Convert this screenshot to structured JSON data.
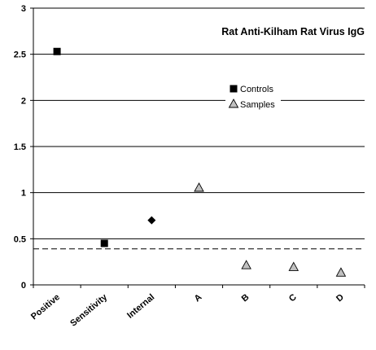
{
  "chart_data": {
    "type": "scatter",
    "title": "Rat Anti-Kilham Rat Virus IgG",
    "categories": [
      "Positive",
      "Sensitivity",
      "Internal",
      "A",
      "B",
      "C",
      "D"
    ],
    "ylim": [
      0,
      3
    ],
    "yticks": [
      "0",
      "0.5",
      "1",
      "1.5",
      "2",
      "2.5",
      "3"
    ],
    "grid": true,
    "legend_position": "center-right",
    "cutoff_line": {
      "value": 0.39,
      "style": "dashed"
    },
    "series": [
      {
        "name": "Controls",
        "marker": "square",
        "color": "#000000",
        "points": [
          {
            "category": "Positive",
            "value": 2.53
          },
          {
            "category": "Sensitivity",
            "value": 0.45
          }
        ]
      },
      {
        "name": "",
        "marker": "diamond",
        "color": "#000000",
        "points": [
          {
            "category": "Internal",
            "value": 0.7
          }
        ]
      },
      {
        "name": "Samples",
        "marker": "triangle",
        "color": "#c0c0c0",
        "points": [
          {
            "category": "A",
            "value": 1.05
          },
          {
            "category": "B",
            "value": 0.21
          },
          {
            "category": "C",
            "value": 0.19
          },
          {
            "category": "D",
            "value": 0.13
          }
        ]
      }
    ]
  }
}
